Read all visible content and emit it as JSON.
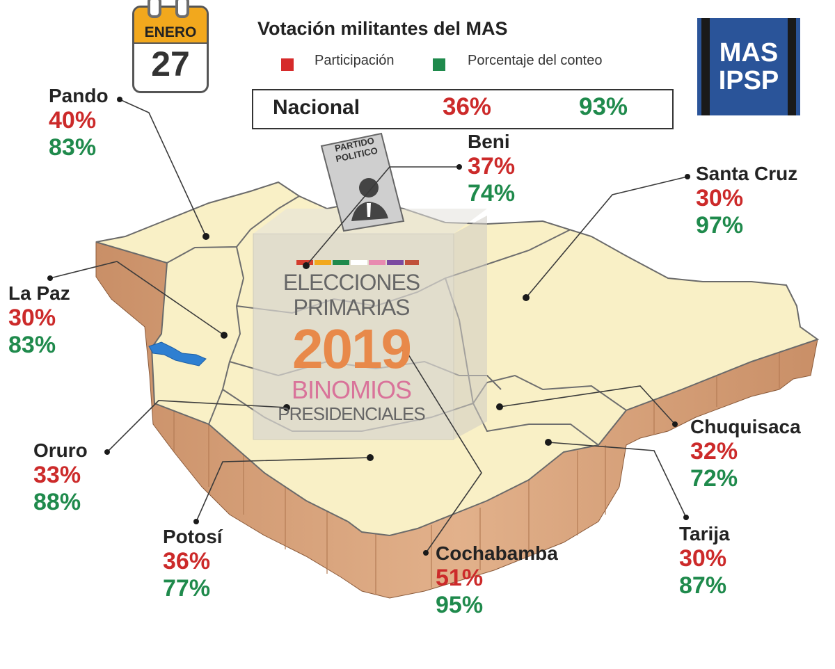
{
  "calendar": {
    "month": "ENERO",
    "day": "27"
  },
  "header": {
    "title": "Votación militantes del MAS",
    "legend": [
      {
        "label": "Participación",
        "color": "#d62b2b"
      },
      {
        "label": "Porcentaje del conteo",
        "color": "#1f8a4c"
      }
    ]
  },
  "national": {
    "label": "Nacional",
    "participation": "36%",
    "count": "93%"
  },
  "logo": {
    "line1": "MAS",
    "line2": "IPSP"
  },
  "ballot": {
    "sign_line1": "PARTIDO",
    "sign_line2": "POLITICO",
    "line1": "ELECCIONES",
    "line2": "PRIMARIAS",
    "year": "2019",
    "line3": "BINOMIOS",
    "line4": "PRESIDENCIALES"
  },
  "departments": [
    {
      "key": "pando",
      "name": "Pando",
      "participation": "40%",
      "count": "83%"
    },
    {
      "key": "beni",
      "name": "Beni",
      "participation": "37%",
      "count": "74%"
    },
    {
      "key": "santacruz",
      "name": "Santa Cruz",
      "participation": "30%",
      "count": "97%"
    },
    {
      "key": "lapaz",
      "name": "La Paz",
      "participation": "30%",
      "count": "83%"
    },
    {
      "key": "oruro",
      "name": "Oruro",
      "participation": "33%",
      "count": "88%"
    },
    {
      "key": "chuquisaca",
      "name": "Chuquisaca",
      "participation": "32%",
      "count": "72%"
    },
    {
      "key": "potosi",
      "name": "Potosí",
      "participation": "36%",
      "count": "77%"
    },
    {
      "key": "cochabamba",
      "name": "Cochabamba",
      "participation": "51%",
      "count": "95%"
    },
    {
      "key": "tarija",
      "name": "Tarija",
      "participation": "30%",
      "count": "87%"
    }
  ],
  "colors": {
    "map_fill": "#f9f0c6",
    "map_side": "#d7a37a",
    "participation": "#cc2a2a",
    "count": "#1f8a4c"
  }
}
